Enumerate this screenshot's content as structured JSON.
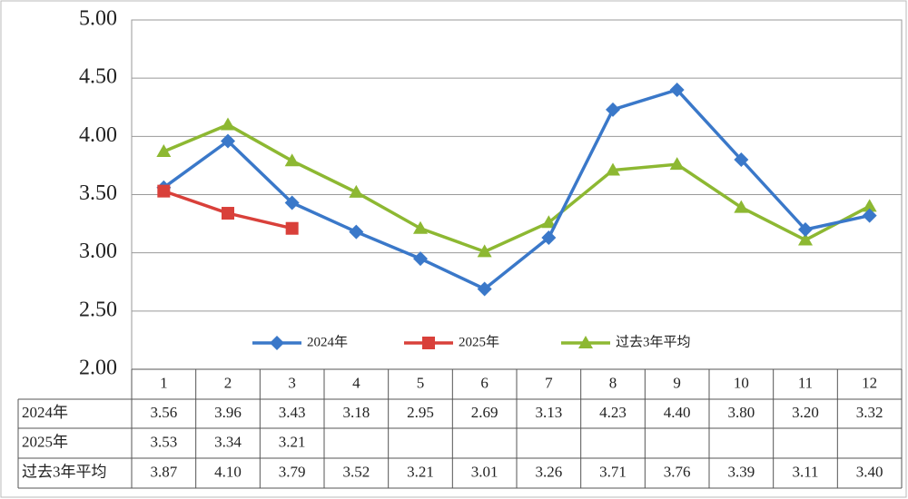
{
  "chart_data": {
    "type": "line",
    "categories": [
      "1",
      "2",
      "3",
      "4",
      "5",
      "6",
      "7",
      "8",
      "9",
      "10",
      "11",
      "12"
    ],
    "series": [
      {
        "name": "2024年",
        "color": "#3a78c9",
        "marker": "diamond",
        "values": [
          3.56,
          3.96,
          3.43,
          3.18,
          2.95,
          2.69,
          3.13,
          4.23,
          4.4,
          3.8,
          3.2,
          3.32
        ],
        "value_labels": [
          "3.56",
          "3.96",
          "3.43",
          "3.18",
          "2.95",
          "2.69",
          "3.13",
          "4.23",
          "4.40",
          "3.80",
          "3.20",
          "3.32"
        ]
      },
      {
        "name": "2025年",
        "color": "#d9403a",
        "marker": "square",
        "values": [
          3.53,
          3.34,
          3.21,
          null,
          null,
          null,
          null,
          null,
          null,
          null,
          null,
          null
        ],
        "value_labels": [
          "3.53",
          "3.34",
          "3.21",
          null,
          null,
          null,
          null,
          null,
          null,
          null,
          null,
          null
        ]
      },
      {
        "name": "过去3年平均",
        "color": "#8db832",
        "marker": "triangle",
        "values": [
          3.87,
          4.1,
          3.79,
          3.52,
          3.21,
          3.01,
          3.26,
          3.71,
          3.76,
          3.39,
          3.11,
          3.4
        ],
        "value_labels": [
          "3.87",
          "4.10",
          "3.79",
          "3.52",
          "3.21",
          "3.01",
          "3.26",
          "3.71",
          "3.76",
          "3.39",
          "3.11",
          "3.40"
        ]
      }
    ],
    "ylim": [
      2,
      5
    ],
    "yticks": [
      {
        "value": 2,
        "label": "2.00"
      },
      {
        "value": 2.5,
        "label": "2.50"
      },
      {
        "value": 3,
        "label": "3.00"
      },
      {
        "value": 3.5,
        "label": "3.50"
      },
      {
        "value": 4,
        "label": "4.00"
      },
      {
        "value": 4.5,
        "label": "4.50"
      },
      {
        "value": 5,
        "label": "5.00"
      }
    ],
    "grid": true,
    "legend": "bottom",
    "data_table": true
  }
}
